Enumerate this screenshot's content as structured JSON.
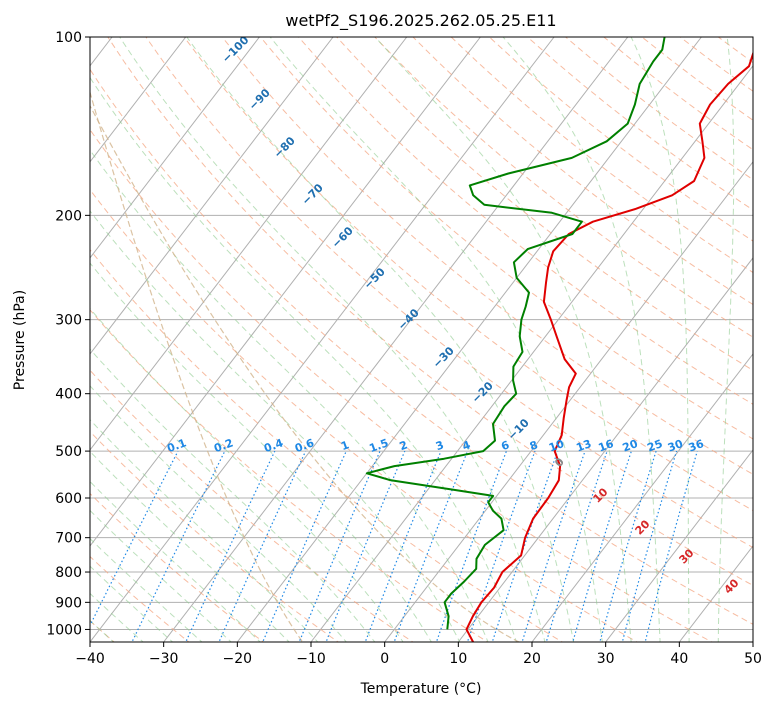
{
  "chart_data": {
    "type": "line",
    "title": "wetPf2_S196.2025.262.05.25.E11",
    "xlabel": "Temperature (°C)",
    "ylabel": "Pressure (hPa)",
    "xlim": [
      -40,
      50
    ],
    "ylim": [
      1050,
      100
    ],
    "y_scale": "log",
    "x_ticks": [
      "−40",
      "−30",
      "−20",
      "−10",
      "0",
      "10",
      "20",
      "30",
      "40",
      "50"
    ],
    "x_tick_values": [
      -40,
      -30,
      -20,
      -10,
      0,
      10,
      20,
      30,
      40,
      50
    ],
    "y_ticks": [
      "100",
      "200",
      "300",
      "400",
      "500",
      "600",
      "700",
      "800",
      "900",
      "1000"
    ],
    "y_tick_values": [
      100,
      200,
      300,
      400,
      500,
      600,
      700,
      800,
      900,
      1000
    ],
    "skew": true,
    "series": [
      {
        "role": "temperature",
        "color": "#e00000",
        "points": [
          {
            "p": 1050,
            "t": 12.0
          },
          {
            "p": 1000,
            "t": 9.8
          },
          {
            "p": 950,
            "t": 9.3
          },
          {
            "p": 900,
            "t": 9.0
          },
          {
            "p": 850,
            "t": 9.2
          },
          {
            "p": 800,
            "t": 8.7
          },
          {
            "p": 750,
            "t": 9.5
          },
          {
            "p": 700,
            "t": 8.2
          },
          {
            "p": 650,
            "t": 7.3
          },
          {
            "p": 600,
            "t": 7.2
          },
          {
            "p": 560,
            "t": 6.8
          },
          {
            "p": 530,
            "t": 5.5
          },
          {
            "p": 500,
            "t": 3.2
          },
          {
            "p": 470,
            "t": 2.5
          },
          {
            "p": 440,
            "t": 1.0
          },
          {
            "p": 410,
            "t": -0.5
          },
          {
            "p": 390,
            "t": -1.5
          },
          {
            "p": 370,
            "t": -2.0
          },
          {
            "p": 350,
            "t": -5.0
          },
          {
            "p": 320,
            "t": -8.5
          },
          {
            "p": 300,
            "t": -11.0
          },
          {
            "p": 280,
            "t": -13.8
          },
          {
            "p": 260,
            "t": -15.5
          },
          {
            "p": 245,
            "t": -16.8
          },
          {
            "p": 230,
            "t": -17.8
          },
          {
            "p": 215,
            "t": -17.5
          },
          {
            "p": 205,
            "t": -15.5
          },
          {
            "p": 195,
            "t": -11.0
          },
          {
            "p": 185,
            "t": -7.5
          },
          {
            "p": 175,
            "t": -6.0
          },
          {
            "p": 160,
            "t": -7.0
          },
          {
            "p": 150,
            "t": -9.0
          },
          {
            "p": 140,
            "t": -11.2
          },
          {
            "p": 130,
            "t": -11.8
          },
          {
            "p": 120,
            "t": -11.5
          },
          {
            "p": 112,
            "t": -10.5
          },
          {
            "p": 105,
            "t": -11.5
          },
          {
            "p": 100,
            "t": -12.0
          }
        ]
      },
      {
        "role": "dewpoint",
        "color": "#008000",
        "points": [
          {
            "p": 1000,
            "t": 7.2
          },
          {
            "p": 950,
            "t": 6.0
          },
          {
            "p": 900,
            "t": 4.0
          },
          {
            "p": 870,
            "t": 4.0
          },
          {
            "p": 830,
            "t": 4.5
          },
          {
            "p": 790,
            "t": 4.8
          },
          {
            "p": 760,
            "t": 3.8
          },
          {
            "p": 720,
            "t": 3.5
          },
          {
            "p": 680,
            "t": 4.5
          },
          {
            "p": 650,
            "t": 3.0
          },
          {
            "p": 630,
            "t": 1.0
          },
          {
            "p": 610,
            "t": -0.5
          },
          {
            "p": 595,
            "t": -0.5
          },
          {
            "p": 580,
            "t": -7.0
          },
          {
            "p": 560,
            "t": -16.0
          },
          {
            "p": 545,
            "t": -20.0
          },
          {
            "p": 530,
            "t": -17.0
          },
          {
            "p": 515,
            "t": -11.0
          },
          {
            "p": 500,
            "t": -6.5
          },
          {
            "p": 480,
            "t": -6.0
          },
          {
            "p": 450,
            "t": -8.0
          },
          {
            "p": 420,
            "t": -8.3
          },
          {
            "p": 400,
            "t": -8.0
          },
          {
            "p": 380,
            "t": -9.8
          },
          {
            "p": 360,
            "t": -11.2
          },
          {
            "p": 340,
            "t": -11.5
          },
          {
            "p": 320,
            "t": -13.5
          },
          {
            "p": 300,
            "t": -15.0
          },
          {
            "p": 285,
            "t": -15.8
          },
          {
            "p": 270,
            "t": -16.8
          },
          {
            "p": 255,
            "t": -20.0
          },
          {
            "p": 240,
            "t": -22.0
          },
          {
            "p": 228,
            "t": -21.5
          },
          {
            "p": 215,
            "t": -17.0
          },
          {
            "p": 205,
            "t": -17.0
          },
          {
            "p": 198,
            "t": -22.0
          },
          {
            "p": 192,
            "t": -32.0
          },
          {
            "p": 185,
            "t": -34.5
          },
          {
            "p": 178,
            "t": -36.0
          },
          {
            "p": 170,
            "t": -32.0
          },
          {
            "p": 160,
            "t": -25.0
          },
          {
            "p": 150,
            "t": -22.0
          },
          {
            "p": 140,
            "t": -21.0
          },
          {
            "p": 130,
            "t": -22.0
          },
          {
            "p": 120,
            "t": -23.5
          },
          {
            "p": 110,
            "t": -24.0
          },
          {
            "p": 105,
            "t": -24.0
          },
          {
            "p": 100,
            "t": -25.0
          }
        ]
      }
    ],
    "mixing_ratio_labels": [
      "0.1",
      "0.2",
      "0.4",
      "0.6",
      "1",
      "1.5",
      "2",
      "3",
      "4",
      "6",
      "8",
      "10",
      "13",
      "16",
      "20",
      "25",
      "30",
      "36"
    ],
    "mixing_ratio_values": [
      0.1,
      0.2,
      0.4,
      0.6,
      1,
      1.5,
      2,
      3,
      4,
      6,
      8,
      10,
      13,
      16,
      20,
      25,
      30,
      36
    ],
    "moist_adiabat_labels": [
      "−100",
      "−90",
      "−80",
      "−70",
      "−60",
      "−50",
      "−40",
      "−30",
      "−20",
      "−10"
    ],
    "moist_adiabat_values": [
      -100,
      -90,
      -80,
      -70,
      -60,
      -50,
      -40,
      -30,
      -20,
      -10
    ],
    "dry_adiabat_labels": [
      "0",
      "10",
      "20",
      "30",
      "40"
    ],
    "dry_adiabat_values": [
      0,
      10,
      20,
      30,
      40
    ],
    "colors": {
      "temperature": "#e00000",
      "dewpoint": "#008000",
      "isotherm": "#b0b0b0",
      "isobar": "#b0b0b0",
      "dry_adiabat": "#f4a582",
      "moist_adiabat": "#8fcc8f",
      "mixing_ratio": "#1e88e5",
      "moist_label": "#1f6fb0",
      "dry_label": "#d62728",
      "tan_curve": "#d2b48c"
    }
  }
}
